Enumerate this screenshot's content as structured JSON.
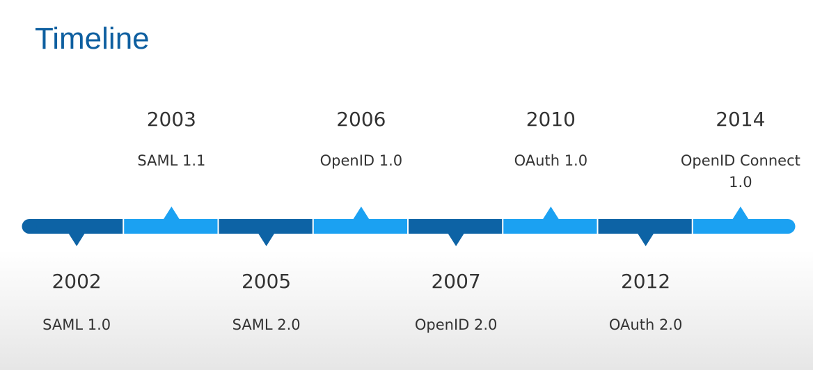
{
  "title": "Timeline",
  "colors": {
    "title": "#0e5fa0",
    "segment_dark": "#0d63a5",
    "segment_light": "#1ba1f2",
    "text": "#333333"
  },
  "milestones": [
    {
      "year": "2002",
      "event": "SAML 1.0",
      "side": "below"
    },
    {
      "year": "2003",
      "event": "SAML 1.1",
      "side": "above"
    },
    {
      "year": "2005",
      "event": "SAML 2.0",
      "side": "below"
    },
    {
      "year": "2006",
      "event": "OpenID 1.0",
      "side": "above"
    },
    {
      "year": "2007",
      "event": "OpenID 2.0",
      "side": "below"
    },
    {
      "year": "2010",
      "event": "OAuth 1.0",
      "side": "above"
    },
    {
      "year": "2012",
      "event": "OAuth 2.0",
      "side": "below"
    },
    {
      "year": "2014",
      "event": "OpenID Connect 1.0",
      "side": "above"
    }
  ]
}
